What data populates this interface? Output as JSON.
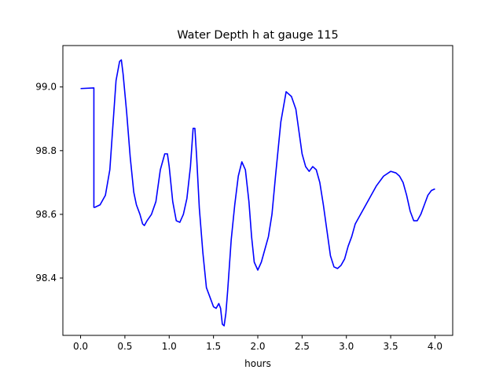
{
  "chart_data": {
    "type": "line",
    "title": "Water Depth h at gauge 115",
    "xlabel": "hours",
    "ylabel": "",
    "xlim": [
      -0.2,
      4.2
    ],
    "ylim": [
      98.22,
      99.13
    ],
    "xticks": [
      0.0,
      0.5,
      1.0,
      1.5,
      2.0,
      2.5,
      3.0,
      3.5,
      4.0
    ],
    "xtick_labels": [
      "0.0",
      "0.5",
      "1.0",
      "1.5",
      "2.0",
      "2.5",
      "3.0",
      "3.5",
      "4.0"
    ],
    "yticks": [
      98.4,
      98.6,
      98.8,
      99.0
    ],
    "ytick_labels": [
      "98.4",
      "98.6",
      "98.8",
      "99.0"
    ],
    "grid": false,
    "series": [
      {
        "color": "#0000ff",
        "x": [
          0.0,
          0.15,
          0.15,
          0.16,
          0.22,
          0.28,
          0.33,
          0.36,
          0.4,
          0.44,
          0.46,
          0.48,
          0.52,
          0.56,
          0.6,
          0.63,
          0.67,
          0.7,
          0.72,
          0.75,
          0.8,
          0.85,
          0.9,
          0.95,
          0.98,
          1.0,
          1.04,
          1.08,
          1.12,
          1.16,
          1.2,
          1.24,
          1.27,
          1.29,
          1.31,
          1.34,
          1.38,
          1.42,
          1.46,
          1.5,
          1.53,
          1.56,
          1.58,
          1.6,
          1.62,
          1.64,
          1.66,
          1.68,
          1.7,
          1.74,
          1.78,
          1.82,
          1.86,
          1.9,
          1.93,
          1.96,
          2.0,
          2.04,
          2.08,
          2.12,
          2.16,
          2.2,
          2.26,
          2.32,
          2.38,
          2.43,
          2.46,
          2.5,
          2.54,
          2.58,
          2.62,
          2.66,
          2.7,
          2.74,
          2.78,
          2.82,
          2.86,
          2.9,
          2.94,
          2.98,
          3.02,
          3.06,
          3.1,
          3.18,
          3.26,
          3.34,
          3.42,
          3.5,
          3.56,
          3.6,
          3.64,
          3.68,
          3.72,
          3.76,
          3.8,
          3.84,
          3.88,
          3.92,
          3.96,
          4.0
        ],
        "values": [
          98.995,
          98.997,
          98.622,
          98.622,
          98.63,
          98.66,
          98.74,
          98.86,
          99.02,
          99.08,
          99.085,
          99.04,
          98.92,
          98.78,
          98.67,
          98.63,
          98.6,
          98.57,
          98.565,
          98.58,
          98.6,
          98.64,
          98.74,
          98.79,
          98.79,
          98.75,
          98.64,
          98.58,
          98.575,
          98.6,
          98.65,
          98.75,
          98.87,
          98.87,
          98.78,
          98.62,
          98.48,
          98.37,
          98.34,
          98.31,
          98.305,
          98.32,
          98.305,
          98.255,
          98.25,
          98.29,
          98.36,
          98.44,
          98.52,
          98.63,
          98.72,
          98.765,
          98.74,
          98.64,
          98.53,
          98.45,
          98.425,
          98.45,
          98.49,
          98.53,
          98.6,
          98.72,
          98.89,
          98.985,
          98.97,
          98.93,
          98.87,
          98.79,
          98.75,
          98.735,
          98.75,
          98.74,
          98.7,
          98.63,
          98.55,
          98.47,
          98.435,
          98.43,
          98.44,
          98.46,
          98.5,
          98.53,
          98.57,
          98.61,
          98.65,
          98.69,
          98.72,
          98.735,
          98.73,
          98.72,
          98.7,
          98.66,
          98.61,
          98.58,
          98.58,
          98.6,
          98.63,
          98.66,
          98.675,
          98.68
        ]
      }
    ]
  }
}
